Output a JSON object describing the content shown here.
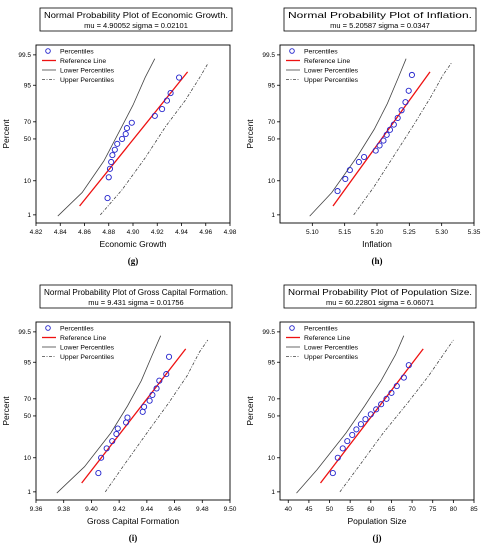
{
  "figure": {
    "panel_layout": "2x2 grid",
    "colors": {
      "points": "#2222cc",
      "reference_line": "#ee1111",
      "lower_percentiles": "#444444",
      "upper_percentiles": "#444444"
    }
  },
  "chart_data": [
    {
      "type": "scatter",
      "sublabel": "(g)",
      "title": "Normal Probability Plot of Economic Growth.",
      "subtitle": "mu = 4.90052  sigma = 0.02101",
      "xlabel": "Economic Growth",
      "ylabel": "Percent",
      "xlim": [
        4.82,
        4.98
      ],
      "xticks": [
        "4.82",
        "4.84",
        "4.86",
        "4.88",
        "4.90",
        "4.92",
        "4.94",
        "4.96",
        "4.98"
      ],
      "yticks": [
        "1",
        "10",
        "50",
        "70",
        "95",
        "99.5"
      ],
      "legend": [
        "Percentiles",
        "Reference Line",
        "Lower Percentiles",
        "Upper Percentiles"
      ],
      "legend_position": "top-left",
      "mu": 4.90052,
      "sigma": 0.02101,
      "points": [
        {
          "x": 4.879,
          "y": 3.5
        },
        {
          "x": 4.88,
          "y": 12
        },
        {
          "x": 4.881,
          "y": 18
        },
        {
          "x": 4.882,
          "y": 24
        },
        {
          "x": 4.883,
          "y": 31
        },
        {
          "x": 4.885,
          "y": 37
        },
        {
          "x": 4.887,
          "y": 44
        },
        {
          "x": 4.891,
          "y": 50
        },
        {
          "x": 4.894,
          "y": 56
        },
        {
          "x": 4.895,
          "y": 63
        },
        {
          "x": 4.899,
          "y": 69
        },
        {
          "x": 4.918,
          "y": 76
        },
        {
          "x": 4.924,
          "y": 82
        },
        {
          "x": 4.928,
          "y": 88
        },
        {
          "x": 4.931,
          "y": 92
        },
        {
          "x": 4.938,
          "y": 97
        }
      ],
      "reference_line": [
        {
          "x": 4.856,
          "y": 2
        },
        {
          "x": 4.945,
          "y": 98
        }
      ],
      "lower_percentiles": [
        {
          "x": 4.838,
          "y": 0.9
        },
        {
          "x": 4.858,
          "y": 5
        },
        {
          "x": 4.876,
          "y": 25
        },
        {
          "x": 4.889,
          "y": 60
        },
        {
          "x": 4.9,
          "y": 85
        },
        {
          "x": 4.91,
          "y": 97
        },
        {
          "x": 4.918,
          "y": 99.3
        }
      ],
      "upper_percentiles": [
        {
          "x": 4.873,
          "y": 1
        },
        {
          "x": 4.891,
          "y": 6
        },
        {
          "x": 4.91,
          "y": 28
        },
        {
          "x": 4.927,
          "y": 65
        },
        {
          "x": 4.943,
          "y": 88
        },
        {
          "x": 4.955,
          "y": 97
        },
        {
          "x": 4.962,
          "y": 99
        }
      ]
    },
    {
      "type": "scatter",
      "sublabel": "(h)",
      "title": "Normal Probability Plot of Inflation.",
      "subtitle": "mu = 5.20587  sigma = 0.0347",
      "xlabel": "Inflation",
      "ylabel": "Percent",
      "xlim": [
        5.05,
        5.35
      ],
      "xticks": [
        "5.10",
        "5.15",
        "5.20",
        "5.25",
        "5.30",
        "5.35"
      ],
      "yticks": [
        "1",
        "10",
        "50",
        "70",
        "95",
        "99.5"
      ],
      "legend": [
        "Percentiles",
        "Reference Line",
        "Lower Percentiles",
        "Upper Percentiles"
      ],
      "legend_position": "top-left",
      "mu": 5.20587,
      "sigma": 0.0347,
      "points": [
        {
          "x": 5.139,
          "y": 5.5
        },
        {
          "x": 5.151,
          "y": 11
        },
        {
          "x": 5.158,
          "y": 17
        },
        {
          "x": 5.172,
          "y": 24
        },
        {
          "x": 5.18,
          "y": 29
        },
        {
          "x": 5.198,
          "y": 36
        },
        {
          "x": 5.204,
          "y": 42
        },
        {
          "x": 5.21,
          "y": 48
        },
        {
          "x": 5.215,
          "y": 55
        },
        {
          "x": 5.22,
          "y": 61
        },
        {
          "x": 5.226,
          "y": 67
        },
        {
          "x": 5.232,
          "y": 74
        },
        {
          "x": 5.238,
          "y": 81
        },
        {
          "x": 5.244,
          "y": 87
        },
        {
          "x": 5.249,
          "y": 93
        },
        {
          "x": 5.254,
          "y": 97.5
        }
      ],
      "reference_line": [
        {
          "x": 5.132,
          "y": 2
        },
        {
          "x": 5.282,
          "y": 98
        }
      ],
      "lower_percentiles": [
        {
          "x": 5.096,
          "y": 0.9
        },
        {
          "x": 5.13,
          "y": 5
        },
        {
          "x": 5.17,
          "y": 30
        },
        {
          "x": 5.196,
          "y": 62
        },
        {
          "x": 5.216,
          "y": 86
        },
        {
          "x": 5.233,
          "y": 97
        },
        {
          "x": 5.245,
          "y": 99.3
        }
      ],
      "upper_percentiles": [
        {
          "x": 5.164,
          "y": 1
        },
        {
          "x": 5.195,
          "y": 7
        },
        {
          "x": 5.226,
          "y": 30
        },
        {
          "x": 5.257,
          "y": 67
        },
        {
          "x": 5.283,
          "y": 90
        },
        {
          "x": 5.302,
          "y": 97.5
        },
        {
          "x": 5.315,
          "y": 99
        }
      ]
    },
    {
      "type": "scatter",
      "sublabel": "(i)",
      "title": "Normal Probability Plot of Gross Capital Formation.",
      "subtitle": "mu = 9.431  sigma = 0.01756",
      "xlabel": "Gross Capital Formation",
      "ylabel": "Percent",
      "xlim": [
        9.36,
        9.5
      ],
      "xticks": [
        "9.36",
        "9.38",
        "9.40",
        "9.42",
        "9.44",
        "9.46",
        "9.48",
        "9.50"
      ],
      "yticks": [
        "1",
        "10",
        "50",
        "70",
        "95",
        "99.5"
      ],
      "legend": [
        "Percentiles",
        "Reference Line",
        "Lower Percentiles",
        "Upper Percentiles"
      ],
      "legend_position": "top-left",
      "mu": 9.431,
      "sigma": 0.01756,
      "points": [
        {
          "x": 9.405,
          "y": 4
        },
        {
          "x": 9.407,
          "y": 10
        },
        {
          "x": 9.411,
          "y": 16
        },
        {
          "x": 9.415,
          "y": 22
        },
        {
          "x": 9.418,
          "y": 29
        },
        {
          "x": 9.419,
          "y": 35
        },
        {
          "x": 9.425,
          "y": 42
        },
        {
          "x": 9.426,
          "y": 48
        },
        {
          "x": 9.437,
          "y": 55
        },
        {
          "x": 9.438,
          "y": 61
        },
        {
          "x": 9.442,
          "y": 68
        },
        {
          "x": 9.444,
          "y": 74
        },
        {
          "x": 9.447,
          "y": 80
        },
        {
          "x": 9.449,
          "y": 86
        },
        {
          "x": 9.454,
          "y": 90
        },
        {
          "x": 9.456,
          "y": 96.5
        }
      ],
      "reference_line": [
        {
          "x": 9.393,
          "y": 2
        },
        {
          "x": 9.468,
          "y": 98
        }
      ],
      "lower_percentiles": [
        {
          "x": 9.375,
          "y": 0.9
        },
        {
          "x": 9.395,
          "y": 6
        },
        {
          "x": 9.414,
          "y": 30
        },
        {
          "x": 9.426,
          "y": 62
        },
        {
          "x": 9.436,
          "y": 86
        },
        {
          "x": 9.444,
          "y": 97
        },
        {
          "x": 9.45,
          "y": 99.3
        }
      ],
      "upper_percentiles": [
        {
          "x": 9.41,
          "y": 1
        },
        {
          "x": 9.424,
          "y": 7
        },
        {
          "x": 9.44,
          "y": 30
        },
        {
          "x": 9.456,
          "y": 66
        },
        {
          "x": 9.469,
          "y": 89
        },
        {
          "x": 9.478,
          "y": 97.5
        },
        {
          "x": 9.484,
          "y": 99
        }
      ]
    },
    {
      "type": "scatter",
      "sublabel": "(j)",
      "title": "Normal Probability Plot of Population Size.",
      "subtitle": "mu = 60.22801  sigma = 6.06071",
      "xlabel": "Population Size",
      "ylabel": "Percent",
      "xlim": [
        38,
        85
      ],
      "xticks": [
        "40",
        "45",
        "50",
        "55",
        "60",
        "65",
        "70",
        "75",
        "80",
        "85"
      ],
      "yticks": [
        "1",
        "10",
        "50",
        "70",
        "95",
        "99.5"
      ],
      "legend": [
        "Percentiles",
        "Reference Line",
        "Lower Percentiles",
        "Upper Percentiles"
      ],
      "legend_position": "top-left",
      "mu": 60.22801,
      "sigma": 6.06071,
      "points": [
        {
          "x": 50.8,
          "y": 4
        },
        {
          "x": 52.0,
          "y": 10
        },
        {
          "x": 53.2,
          "y": 16
        },
        {
          "x": 54.3,
          "y": 22
        },
        {
          "x": 55.5,
          "y": 28
        },
        {
          "x": 56.5,
          "y": 34
        },
        {
          "x": 57.6,
          "y": 40
        },
        {
          "x": 58.7,
          "y": 46
        },
        {
          "x": 60.0,
          "y": 52
        },
        {
          "x": 61.3,
          "y": 58
        },
        {
          "x": 62.5,
          "y": 64
        },
        {
          "x": 63.8,
          "y": 70
        },
        {
          "x": 65.0,
          "y": 76
        },
        {
          "x": 66.3,
          "y": 82
        },
        {
          "x": 68.0,
          "y": 88
        },
        {
          "x": 69.2,
          "y": 94
        }
      ],
      "reference_line": [
        {
          "x": 47.8,
          "y": 2
        },
        {
          "x": 72.7,
          "y": 98
        }
      ],
      "lower_percentiles": [
        {
          "x": 42.0,
          "y": 0.9
        },
        {
          "x": 47.0,
          "y": 5
        },
        {
          "x": 54.0,
          "y": 30
        },
        {
          "x": 58.5,
          "y": 62
        },
        {
          "x": 62.5,
          "y": 86
        },
        {
          "x": 66.0,
          "y": 97
        },
        {
          "x": 68.0,
          "y": 99.3
        }
      ],
      "upper_percentiles": [
        {
          "x": 52.5,
          "y": 1
        },
        {
          "x": 57.5,
          "y": 7
        },
        {
          "x": 63.0,
          "y": 30
        },
        {
          "x": 69.0,
          "y": 66
        },
        {
          "x": 74.0,
          "y": 89
        },
        {
          "x": 78.0,
          "y": 97.5
        },
        {
          "x": 80.0,
          "y": 99
        }
      ]
    }
  ]
}
